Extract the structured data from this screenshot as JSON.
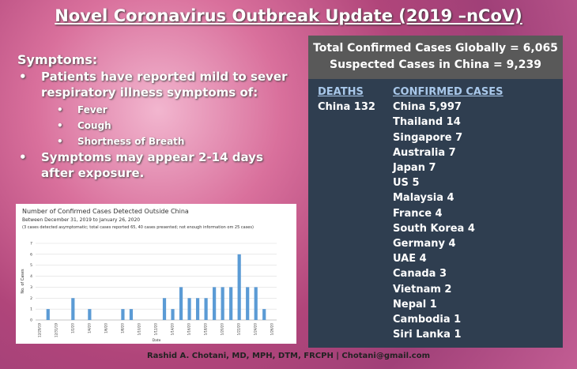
{
  "title": "Novel Coronavirus Outbreak Update (2019 –nCoV)",
  "symptoms": {
    "heading": "Symptoms:",
    "bullets": [
      {
        "text": "Patients have reported mild to sever respiratory illness symptoms of:",
        "sub": [
          "Fever",
          "Cough",
          "Shortness of Breath"
        ]
      },
      {
        "text": "Symptoms may appear 2-14 days after exposure.",
        "sub": []
      }
    ]
  },
  "summary": {
    "lines": [
      "Total Confirmed Cases Globally = 6,065",
      "Suspected Cases in China = 9,239"
    ],
    "deaths": {
      "heading": "DEATHS",
      "items": [
        "China 132"
      ]
    },
    "confirmed": {
      "heading": "CONFIRMED CASES",
      "items": [
        "China 5,997",
        "Thailand 14",
        "Singapore 7",
        "Australia 7",
        "Japan 7",
        "US 5",
        "Malaysia 4",
        "France 4",
        "South Korea 4",
        "Germany 4",
        "UAE 4",
        "Canada 3",
        "Vietnam 2",
        "Nepal 1",
        "Cambodia 1",
        "Siri Lanka 1"
      ]
    }
  },
  "footer": "Rashid A. Chotani, MD, MPH, DTM, FRCPH | Chotani@gmail.com",
  "chart_data": {
    "type": "bar",
    "title": "Number of Confirmed Cases Detected Outside China",
    "subtitle": "Between December 31, 2019 to January 26, 2020",
    "note": "(3 cases detected asymptomatic; total cases reported 65, 40 cases presented; not enough information om 25 cases)",
    "y_label": "No. of Cases",
    "x_label": "Date",
    "categories": [
      "12/29/19",
      null,
      "12/31/19",
      null,
      "1/2/20",
      null,
      "1/4/20",
      null,
      "1/6/20",
      null,
      "1/8/20",
      null,
      "1/10/20",
      null,
      "1/12/20",
      null,
      "1/14/20",
      null,
      "1/16/20",
      null,
      "1/18/20",
      null,
      "1/20/20",
      null,
      "1/22/20",
      null,
      "1/24/20",
      null,
      "1/26/20"
    ],
    "values": [
      0,
      1,
      0,
      0,
      2,
      0,
      1,
      0,
      0,
      0,
      1,
      1,
      0,
      0,
      0,
      2,
      1,
      3,
      2,
      2,
      2,
      3,
      3,
      3,
      6,
      3,
      3,
      1,
      0
    ],
    "color": "#5b9bd5",
    "ylim": [
      0,
      7
    ],
    "yticks": [
      0,
      1,
      2,
      3,
      4,
      5,
      6,
      7
    ],
    "grid": true
  }
}
